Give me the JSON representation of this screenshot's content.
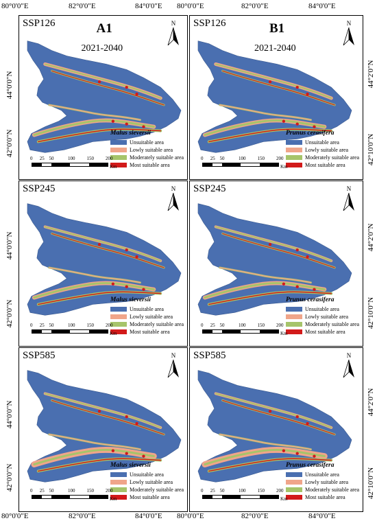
{
  "top_lon_labels": [
    "80°0'0\"E",
    "82°0'0\"E",
    "84°0'0\"E",
    "80°0'0\"E",
    "82°0'0\"E",
    "84°0'0\"E"
  ],
  "bottom_lon_labels": [
    "80°0'0\"E",
    "82°0'0\"E",
    "84°0'0\"E",
    "80°0'0\"E",
    "82°0'0\"E",
    "84°0'0\"E"
  ],
  "left_lat_labels": [
    "44°0'0\"N",
    "42°0'0\"N"
  ],
  "right_lat_labels": [
    "44°2'0\"N",
    "42°10'0\"N"
  ],
  "colors": {
    "unsuitable": "#4a6fb0",
    "lowly": "#f0a58a",
    "moderately": "#a6c46a",
    "most": "#d21a1a"
  },
  "columns": [
    {
      "label": "A1",
      "period": "2021-2040",
      "species": "Malus sieversii"
    },
    {
      "label": "B1",
      "period": "2021-2040",
      "species": "Prunus cerasifera"
    }
  ],
  "rows": [
    {
      "scenario": "SSP126"
    },
    {
      "scenario": "SSP245"
    },
    {
      "scenario": "SSP585"
    }
  ],
  "legend_items": [
    "Unsuitable area",
    "Lowly suitable area",
    "Moderately suitable area",
    "Most suitable area"
  ],
  "north_label": "N",
  "scale_ticks": [
    "0",
    "25",
    "50",
    "100",
    "150",
    "200"
  ],
  "scale_unit": "Km"
}
